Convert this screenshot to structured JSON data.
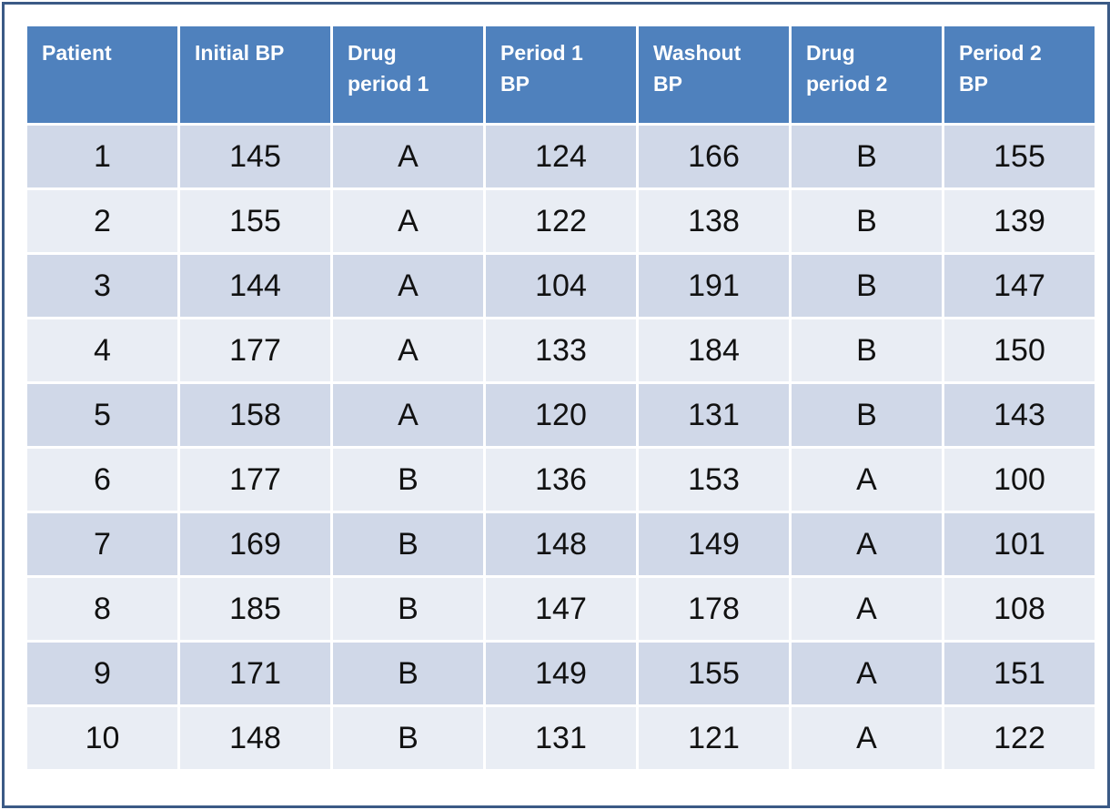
{
  "table": {
    "columns": [
      "Patient",
      "Initial BP",
      "Drug\nperiod 1",
      "Period 1\nBP",
      "Washout\nBP",
      "Drug\nperiod 2",
      "Period 2\nBP"
    ],
    "rows": [
      [
        "1",
        "145",
        "A",
        "124",
        "166",
        "B",
        "155"
      ],
      [
        "2",
        "155",
        "A",
        "122",
        "138",
        "B",
        "139"
      ],
      [
        "3",
        "144",
        "A",
        "104",
        "191",
        "B",
        "147"
      ],
      [
        "4",
        "177",
        "A",
        "133",
        "184",
        "B",
        "150"
      ],
      [
        "5",
        "158",
        "A",
        "120",
        "131",
        "B",
        "143"
      ],
      [
        "6",
        "177",
        "B",
        "136",
        "153",
        "A",
        "100"
      ],
      [
        "7",
        "169",
        "B",
        "148",
        "149",
        "A",
        "101"
      ],
      [
        "8",
        "185",
        "B",
        "147",
        "178",
        "A",
        "108"
      ],
      [
        "9",
        "171",
        "B",
        "149",
        "155",
        "A",
        "151"
      ],
      [
        "10",
        "148",
        "B",
        "131",
        "121",
        "A",
        "122"
      ]
    ]
  },
  "colors": {
    "header_bg": "#4f81bd",
    "row_dark": "#d0d8e8",
    "row_light": "#e9edf4",
    "frame_border": "#3b5a86"
  }
}
